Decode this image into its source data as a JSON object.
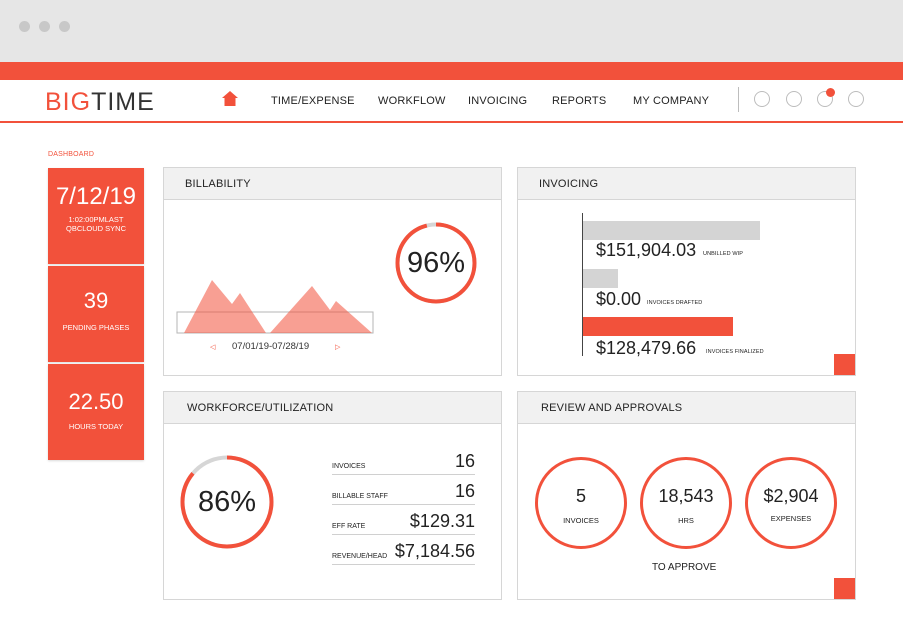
{
  "app": {
    "logo_part1": "BIG",
    "logo_part2": "TIME",
    "accent_color": "#f2513b"
  },
  "nav": {
    "items": [
      "TIME/EXPENSE",
      "WORKFLOW",
      "INVOICING",
      "REPORTS",
      "MY COMPANY"
    ],
    "home_icon": "home-icon"
  },
  "breadcrumb": "DASHBOARD",
  "stats": [
    {
      "big": "7/12/19",
      "small": "1:02:00PMLAST QBCLOUD SYNC"
    },
    {
      "big": "39",
      "small": "PENDING PHASES"
    },
    {
      "big": "22.50",
      "small": "HOURS TODAY"
    }
  ],
  "billability": {
    "title": "BILLABILITY",
    "percent_label": "96%",
    "percent": 0.96,
    "range": "07/01/19-07/28/19"
  },
  "invoicing": {
    "title": "INVOICING",
    "rows": [
      {
        "amount": "$151,904.03",
        "label": "UNBILLED WIP",
        "value": 151904.03,
        "color": "#d4d4d4"
      },
      {
        "amount": "$0.00",
        "label": "INVOICES DRAFTED",
        "value": 0,
        "color": "#d4d4d4"
      },
      {
        "amount": "$128,479.66",
        "label": "INVOICES FINALIZED",
        "value": 128479.66,
        "color": "#f2513b"
      }
    ]
  },
  "workforce": {
    "title": "WORKFORCE/UTILIZATION",
    "percent_label": "86%",
    "percent": 0.86,
    "rows": [
      {
        "label": "INVOICES",
        "value": "16"
      },
      {
        "label": "BILLABLE STAFF",
        "value": "16"
      },
      {
        "label": "EFF RATE",
        "value": "$129.31"
      },
      {
        "label": "REVENUE/HEAD",
        "value": "$7,184.56"
      }
    ]
  },
  "review": {
    "title": "REVIEW AND APPROVALS",
    "items": [
      {
        "num": "5",
        "cap": "INVOICES"
      },
      {
        "num": "18,543",
        "cap": "HRS"
      },
      {
        "num": "$2,904",
        "cap": "EXPENSES"
      }
    ],
    "footer": "TO APPROVE"
  }
}
